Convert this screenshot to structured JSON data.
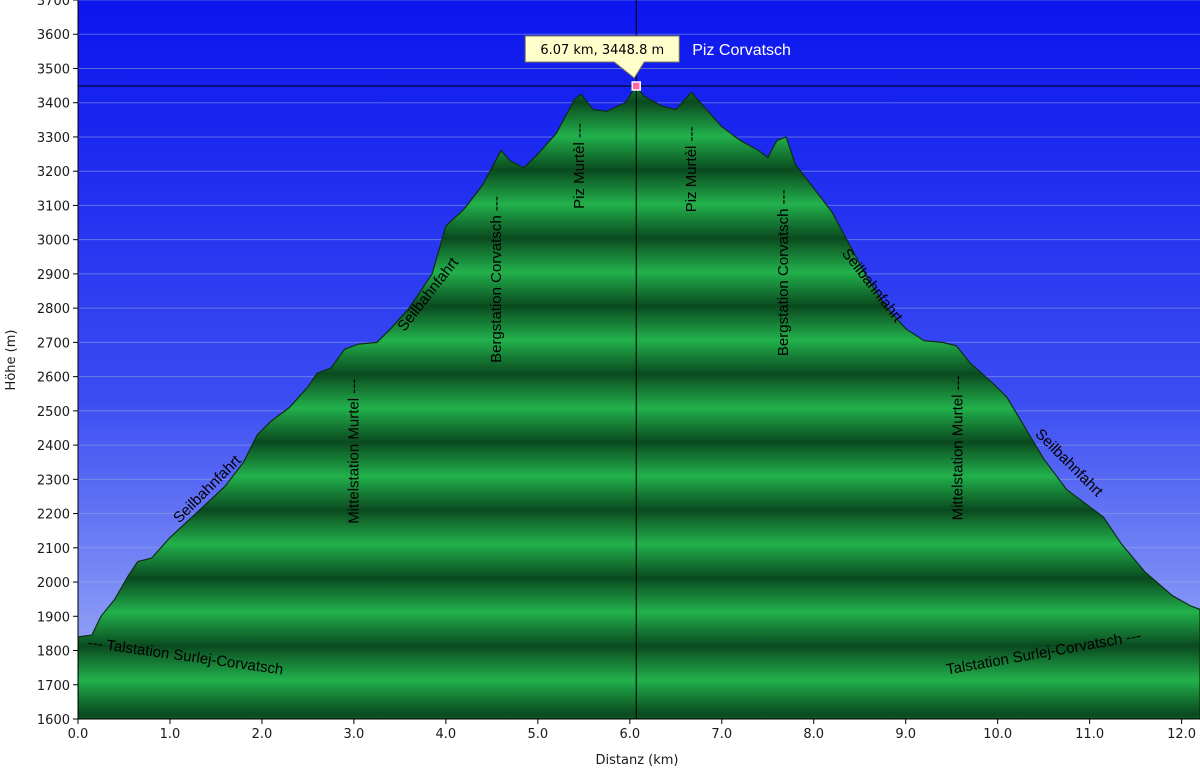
{
  "chart_data": {
    "type": "area",
    "xlabel": "Distanz  (km)",
    "ylabel": "Höhe (m)",
    "xlim": [
      0,
      12.2
    ],
    "ylim": [
      1600,
      3700
    ],
    "x_ticks": [
      "0.0",
      "1.0",
      "2.0",
      "3.0",
      "4.0",
      "5.0",
      "6.0",
      "7.0",
      "8.0",
      "9.0",
      "10.0",
      "11.0",
      "12.0"
    ],
    "y_ticks": [
      "1600",
      "1700",
      "1800",
      "1900",
      "2000",
      "2100",
      "2200",
      "2300",
      "2400",
      "2500",
      "2600",
      "2700",
      "2800",
      "2900",
      "3000",
      "3100",
      "3200",
      "3300",
      "3400",
      "3500",
      "3600",
      "3700"
    ],
    "grid": true,
    "cursor": {
      "x": 6.07,
      "y": 3448.8,
      "label": "6.07 km, 3448.8 m",
      "name": "Piz Corvatsch"
    },
    "profile": [
      [
        0.0,
        1840
      ],
      [
        0.15,
        1845
      ],
      [
        0.25,
        1900
      ],
      [
        0.4,
        1950
      ],
      [
        0.55,
        2020
      ],
      [
        0.65,
        2060
      ],
      [
        0.8,
        2070
      ],
      [
        1.0,
        2130
      ],
      [
        1.2,
        2180
      ],
      [
        1.4,
        2230
      ],
      [
        1.6,
        2280
      ],
      [
        1.8,
        2350
      ],
      [
        1.95,
        2430
      ],
      [
        2.1,
        2470
      ],
      [
        2.3,
        2510
      ],
      [
        2.5,
        2570
      ],
      [
        2.6,
        2610
      ],
      [
        2.75,
        2625
      ],
      [
        2.9,
        2680
      ],
      [
        3.05,
        2695
      ],
      [
        3.25,
        2700
      ],
      [
        3.4,
        2740
      ],
      [
        3.6,
        2800
      ],
      [
        3.85,
        2900
      ],
      [
        4.0,
        3040
      ],
      [
        4.2,
        3090
      ],
      [
        4.4,
        3160
      ],
      [
        4.6,
        3260
      ],
      [
        4.7,
        3230
      ],
      [
        4.85,
        3210
      ],
      [
        5.0,
        3250
      ],
      [
        5.2,
        3310
      ],
      [
        5.4,
        3410
      ],
      [
        5.47,
        3425
      ],
      [
        5.6,
        3380
      ],
      [
        5.75,
        3375
      ],
      [
        5.95,
        3400
      ],
      [
        6.07,
        3448.8
      ],
      [
        6.15,
        3420
      ],
      [
        6.35,
        3390
      ],
      [
        6.5,
        3380
      ],
      [
        6.6,
        3410
      ],
      [
        6.67,
        3430
      ],
      [
        6.8,
        3390
      ],
      [
        7.0,
        3330
      ],
      [
        7.2,
        3290
      ],
      [
        7.4,
        3260
      ],
      [
        7.5,
        3240
      ],
      [
        7.6,
        3290
      ],
      [
        7.7,
        3300
      ],
      [
        7.8,
        3220
      ],
      [
        8.0,
        3150
      ],
      [
        8.2,
        3080
      ],
      [
        8.4,
        2980
      ],
      [
        8.6,
        2880
      ],
      [
        8.8,
        2800
      ],
      [
        9.0,
        2740
      ],
      [
        9.2,
        2705
      ],
      [
        9.4,
        2700
      ],
      [
        9.55,
        2690
      ],
      [
        9.7,
        2640
      ],
      [
        9.95,
        2580
      ],
      [
        10.1,
        2540
      ],
      [
        10.3,
        2450
      ],
      [
        10.5,
        2360
      ],
      [
        10.75,
        2270
      ],
      [
        11.0,
        2220
      ],
      [
        11.15,
        2190
      ],
      [
        11.35,
        2110
      ],
      [
        11.6,
        2030
      ],
      [
        11.9,
        1960
      ],
      [
        12.1,
        1930
      ],
      [
        12.2,
        1920
      ]
    ],
    "annotations": [
      {
        "text": "--- Talstation Surlej-Corvatsch",
        "x": 0.1,
        "y": 1810,
        "angle": 8
      },
      {
        "text": "Seilbahnfahrt",
        "x": 1.1,
        "y": 2170,
        "angle": -45
      },
      {
        "text": "Mittelstation Murtel ---",
        "x": 3.05,
        "y": 2170,
        "angle": -90
      },
      {
        "text": "Seilbahnfahrt",
        "x": 3.55,
        "y": 2730,
        "angle": -52
      },
      {
        "text": "Bergstation Corvatsch ---",
        "x": 4.6,
        "y": 2640,
        "angle": -90
      },
      {
        "text": "Piz Murtèl ---",
        "x": 5.5,
        "y": 3090,
        "angle": -90
      },
      {
        "text": "Piz Murtèl ---",
        "x": 6.72,
        "y": 3080,
        "angle": -90
      },
      {
        "text": "Bergstation Corvatsch ---",
        "x": 7.72,
        "y": 2660,
        "angle": -90
      },
      {
        "text": "Seilbahnfahrt",
        "x": 8.3,
        "y": 2960,
        "angle": 52
      },
      {
        "text": "Mittelstation Murtel ---",
        "x": 9.62,
        "y": 2180,
        "angle": -90
      },
      {
        "text": "Seilbahnfahrt",
        "x": 10.4,
        "y": 2430,
        "angle": 45
      },
      {
        "text": "Talstation Surlej-Corvatsch ---",
        "x": 9.45,
        "y": 1730,
        "angle": -10
      }
    ],
    "colors": {
      "sky_top": "#0b15ee",
      "sky_bottom": "#a9b8f8",
      "terrain_light": "#22b14c",
      "terrain_dark": "#0a4a1f",
      "outline": "#0d2e12",
      "tooltip_bg": "#ffffcc",
      "marker": "#ff66aa"
    }
  }
}
